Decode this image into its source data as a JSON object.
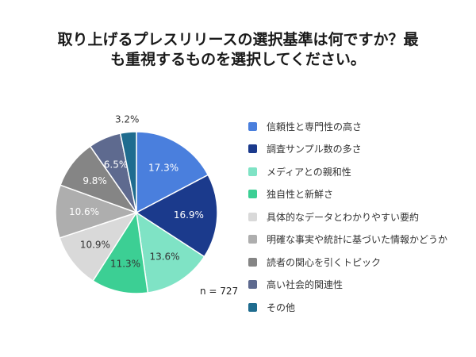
{
  "chart_data": {
    "type": "pie",
    "title_lines": [
      "取り上げるプレスリリースの選択基準は何ですか？最",
      "も重視するものを選択してください。"
    ],
    "categories": [
      "信頼性と専門性の高さ",
      "調査サンプル数の多さ",
      "メディアとの親和性",
      "独自性と新鮮さ",
      "具体的なデータとわかりやすい要約",
      "明確な事実や統計に基づいた情報かどうか",
      "読者の関心を引くトピック",
      "高い社会的関連性",
      "その他"
    ],
    "values": [
      17.3,
      16.9,
      13.6,
      11.3,
      10.9,
      10.6,
      9.8,
      6.5,
      3.2
    ],
    "data_labels": [
      "17.3%",
      "16.9%",
      "13.6%",
      "11.3%",
      "10.9%",
      "10.6%",
      "9.8%",
      "6.5%",
      "3.2%"
    ],
    "colors": [
      "#4a7fdd",
      "#1b3a8c",
      "#7fe3c5",
      "#3ccf94",
      "#d9d9d9",
      "#aeaeae",
      "#858585",
      "#5e6a8f",
      "#1f6c8f"
    ],
    "label_colors": [
      "#ffffff",
      "#ffffff",
      "#333333",
      "#333333",
      "#333333",
      "#ffffff",
      "#ffffff",
      "#ffffff",
      "#333333"
    ],
    "legend_placement": "right",
    "note": "n = 727"
  }
}
